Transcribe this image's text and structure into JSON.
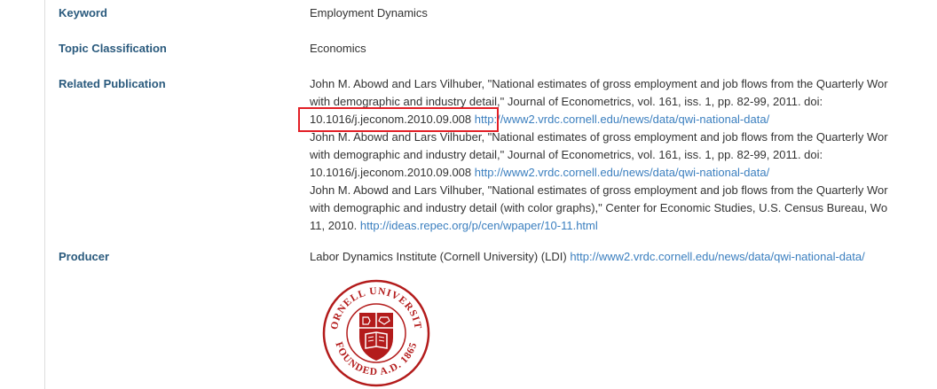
{
  "fields": {
    "keyword": {
      "label": "Keyword",
      "value": "Employment Dynamics"
    },
    "topic": {
      "label": "Topic Classification",
      "value": "Economics"
    },
    "related": {
      "label": "Related Publication",
      "pubs": [
        {
          "line1": "John M. Abowd and Lars Vilhuber, \"National estimates of gross employment and job flows from the Quarterly Wor",
          "line2": "with demographic and industry detail,\" Journal of Econometrics, vol. 161, iss. 1, pp. 82-99, 2011. doi:",
          "line3_text": "10.1016/j.jeconom.2010.09.008",
          "link": "http://www2.vrdc.cornell.edu/news/data/qwi-national-data/"
        },
        {
          "line1": "John M. Abowd and Lars Vilhuber, \"National estimates of gross employment and job flows from the Quarterly Wor",
          "line2": "with demographic and industry detail,\" Journal of Econometrics, vol. 161, iss. 1, pp. 82-99, 2011. doi:",
          "line3_text": "10.1016/j.jeconom.2010.09.008",
          "link": "http://www2.vrdc.cornell.edu/news/data/qwi-national-data/"
        },
        {
          "line1": "John M. Abowd and Lars Vilhuber, \"National estimates of gross employment and job flows from the Quarterly Wor",
          "line2": "with demographic and industry detail (with color graphs),\" Center for Economic Studies, U.S. Census Bureau, Wo",
          "line3_text": "11, 2010.",
          "link": "http://ideas.repec.org/p/cen/wpaper/10-11.html"
        }
      ]
    },
    "producer": {
      "label": "Producer",
      "name": "Labor Dynamics Institute (Cornell University) (LDI)",
      "link": "http://www2.vrdc.cornell.edu/news/data/qwi-national-data/",
      "seal_text_top": "CORNELL UNIVERSITY",
      "seal_text_bottom": "FOUNDED A.D. 1865",
      "seal_color": "#b31b1b"
    }
  },
  "colors": {
    "label": "#2a5a7d",
    "link": "#3b7fbf",
    "highlight": "#e21f26"
  }
}
